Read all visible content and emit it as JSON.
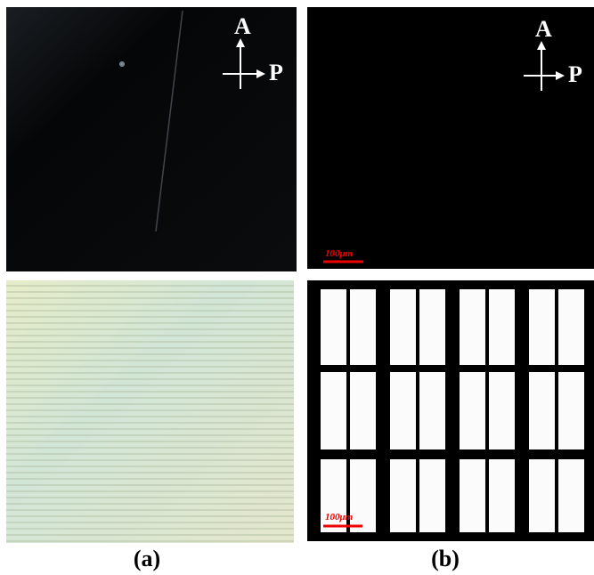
{
  "top_left": {
    "analyzer": "A",
    "polarizer": "P"
  },
  "top_right": {
    "analyzer": "A",
    "polarizer": "P",
    "scale_bar": "100μm"
  },
  "bottom_right": {
    "scale_bar": "100μm"
  },
  "captions": [
    "(a)",
    "(b)"
  ]
}
